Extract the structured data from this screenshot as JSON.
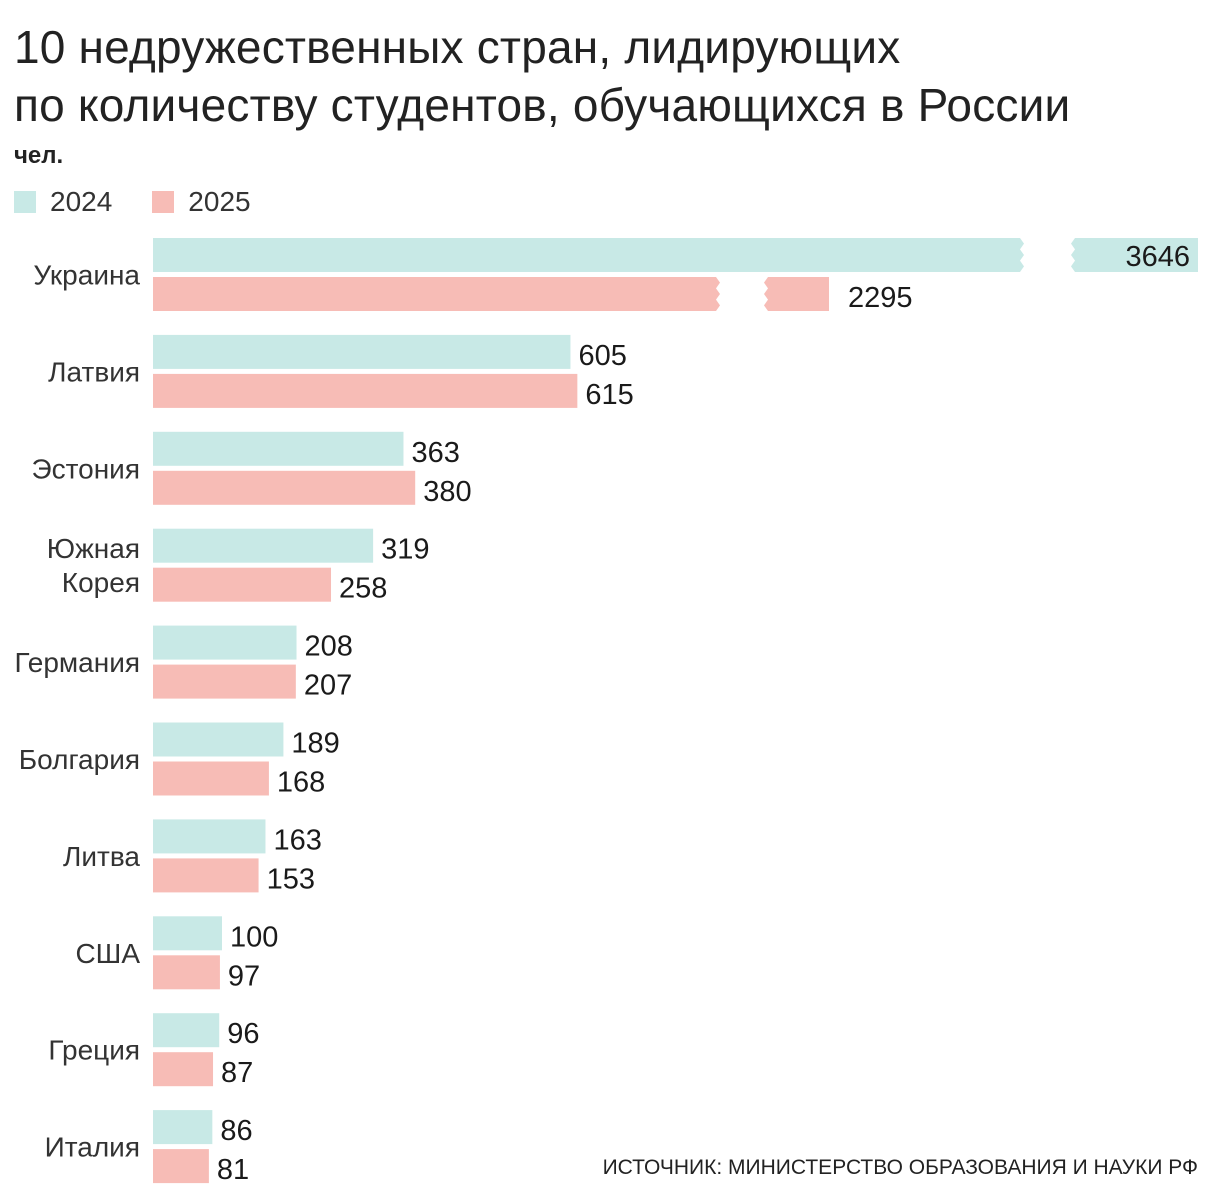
{
  "chart_data": {
    "type": "bar",
    "orientation": "horizontal",
    "title": "10 недружественных стран, лидирующих по количеству студентов, обучающихся в России",
    "title_lines": [
      "10 недружественных стран, лидирующих",
      "по количеству студентов, обучающихся в России"
    ],
    "unit": "чел.",
    "categories": [
      "Украина",
      "Латвия",
      "Эстония",
      "Южная Корея",
      "Германия",
      "Болгария",
      "Литва",
      "США",
      "Греция",
      "Италия"
    ],
    "category_lines": [
      [
        "Украина"
      ],
      [
        "Латвия"
      ],
      [
        "Эстония"
      ],
      [
        "Южная",
        "Корея"
      ],
      [
        "Германия"
      ],
      [
        "Болгария"
      ],
      [
        "Литва"
      ],
      [
        "США"
      ],
      [
        "Греция"
      ],
      [
        "Италия"
      ]
    ],
    "series": [
      {
        "name": "2024",
        "color": "#c8e9e6",
        "values": [
          3646,
          605,
          363,
          319,
          208,
          189,
          163,
          100,
          96,
          86
        ]
      },
      {
        "name": "2025",
        "color": "#f7bcb6",
        "values": [
          2295,
          615,
          380,
          258,
          207,
          168,
          153,
          97,
          87,
          81
        ]
      }
    ],
    "broken_bars": [
      "Украина"
    ],
    "legend_position": "top-left",
    "grid": false,
    "source": "ИСТОЧНИК: МИНИСТЕРСТВО ОБРАЗОВАНИЯ И НАУКИ РФ"
  }
}
